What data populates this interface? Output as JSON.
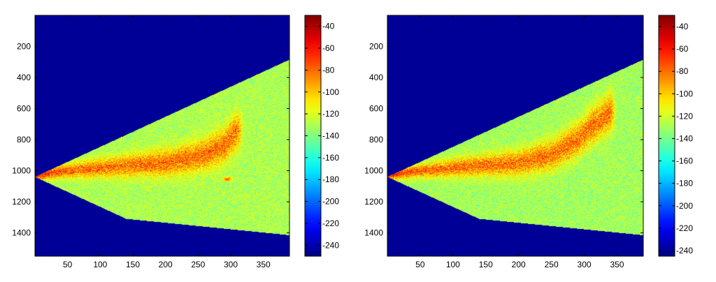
{
  "chart_data": [
    {
      "type": "heatmap",
      "title": "",
      "xlabel": "",
      "ylabel": "",
      "xlim": [
        0,
        390
      ],
      "ylim": [
        1550,
        0
      ],
      "x_ticks": [
        50,
        100,
        150,
        200,
        250,
        300,
        350
      ],
      "y_ticks": [
        200,
        400,
        600,
        800,
        1000,
        1200,
        1400
      ],
      "colorbar": {
        "colormap": "jet",
        "range": [
          -250,
          -30
        ],
        "ticks": [
          -40,
          -60,
          -80,
          -100,
          -120,
          -140,
          -160,
          -180,
          -200,
          -220,
          -240
        ]
      },
      "background_value": -245,
      "sector": {
        "apex": [
          0,
          1040
        ],
        "upper_edge": [
          [
            0,
            1040
          ],
          [
            390,
            285
          ]
        ],
        "lower_edge": [
          [
            0,
            1040
          ],
          [
            140,
            1310
          ],
          [
            390,
            1415
          ]
        ],
        "field_value": -130
      },
      "hot_band": [
        [
          0,
          1030
        ],
        [
          50,
          1000
        ],
        [
          120,
          975
        ],
        [
          200,
          950
        ],
        [
          250,
          910
        ],
        [
          290,
          840
        ],
        [
          310,
          740
        ]
      ],
      "hot_spot": [
        295,
        1055
      ]
    },
    {
      "type": "heatmap",
      "title": "",
      "xlabel": "",
      "ylabel": "",
      "xlim": [
        0,
        390
      ],
      "ylim": [
        1550,
        0
      ],
      "x_ticks": [
        50,
        100,
        150,
        200,
        250,
        300,
        350
      ],
      "y_ticks": [
        200,
        400,
        600,
        800,
        1000,
        1200,
        1400
      ],
      "colorbar": {
        "colormap": "jet",
        "range": [
          -245,
          -30
        ],
        "ticks": [
          -40,
          -60,
          -80,
          -100,
          -120,
          -140,
          -160,
          -180,
          -200,
          -220,
          -240
        ]
      },
      "background_value": -240,
      "sector": {
        "apex": [
          0,
          1040
        ],
        "upper_edge": [
          [
            0,
            1040
          ],
          [
            390,
            285
          ]
        ],
        "lower_edge": [
          [
            0,
            1040
          ],
          [
            140,
            1310
          ],
          [
            390,
            1415
          ]
        ],
        "field_value": -130
      },
      "hot_band": [
        [
          0,
          1030
        ],
        [
          50,
          1000
        ],
        [
          120,
          975
        ],
        [
          200,
          950
        ],
        [
          250,
          900
        ],
        [
          290,
          800
        ],
        [
          310,
          720
        ],
        [
          340,
          620
        ]
      ],
      "hot_spot": null
    }
  ]
}
